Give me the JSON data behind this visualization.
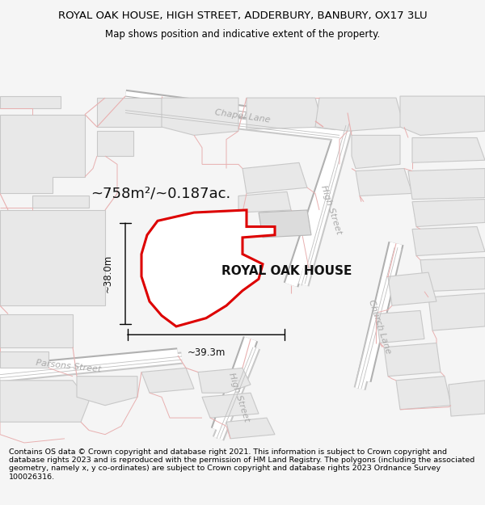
{
  "title": "ROYAL OAK HOUSE, HIGH STREET, ADDERBURY, BANBURY, OX17 3LU",
  "subtitle": "Map shows position and indicative extent of the property.",
  "footer": "Contains OS data © Crown copyright and database right 2021. This information is subject to Crown copyright and database rights 2023 and is reproduced with the permission of HM Land Registry. The polygons (including the associated geometry, namely x, y co-ordinates) are subject to Crown copyright and database rights 2023 Ordnance Survey 100026316.",
  "area_label": "~758m²/~0.187ac.",
  "property_label": "ROYAL OAK HOUSE",
  "dim_width": "~39.3m",
  "dim_height": "~38.0m",
  "bg_color": "#f5f5f5",
  "map_bg": "#ffffff",
  "plot_color": "#dd0000",
  "title_fontsize": 9.5,
  "subtitle_fontsize": 8.5,
  "footer_fontsize": 6.8,
  "road_gray": "#b0b0b0",
  "road_pink": "#e8b0b0",
  "bld_fill": "#e8e8e8",
  "bld_edge": "#c8c8c8",
  "bld_fill2": "#dcdcdc",
  "road_label_color": "#aaaaaa"
}
